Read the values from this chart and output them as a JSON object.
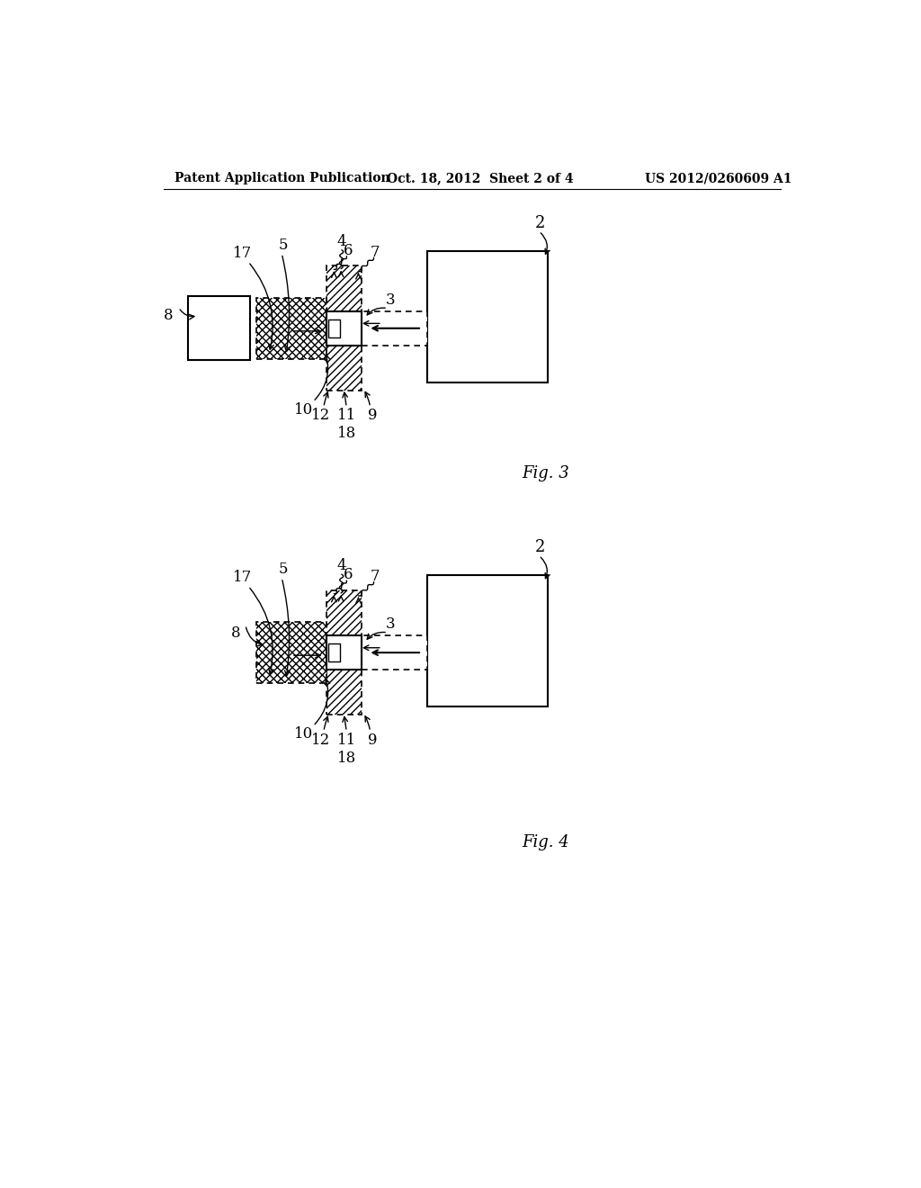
{
  "background_color": "#ffffff",
  "header_left": "Patent Application Publication",
  "header_center": "Oct. 18, 2012  Sheet 2 of 4",
  "header_right": "US 2012/0260609 A1",
  "fig3_label": "Fig. 3",
  "fig4_label": "Fig. 4"
}
